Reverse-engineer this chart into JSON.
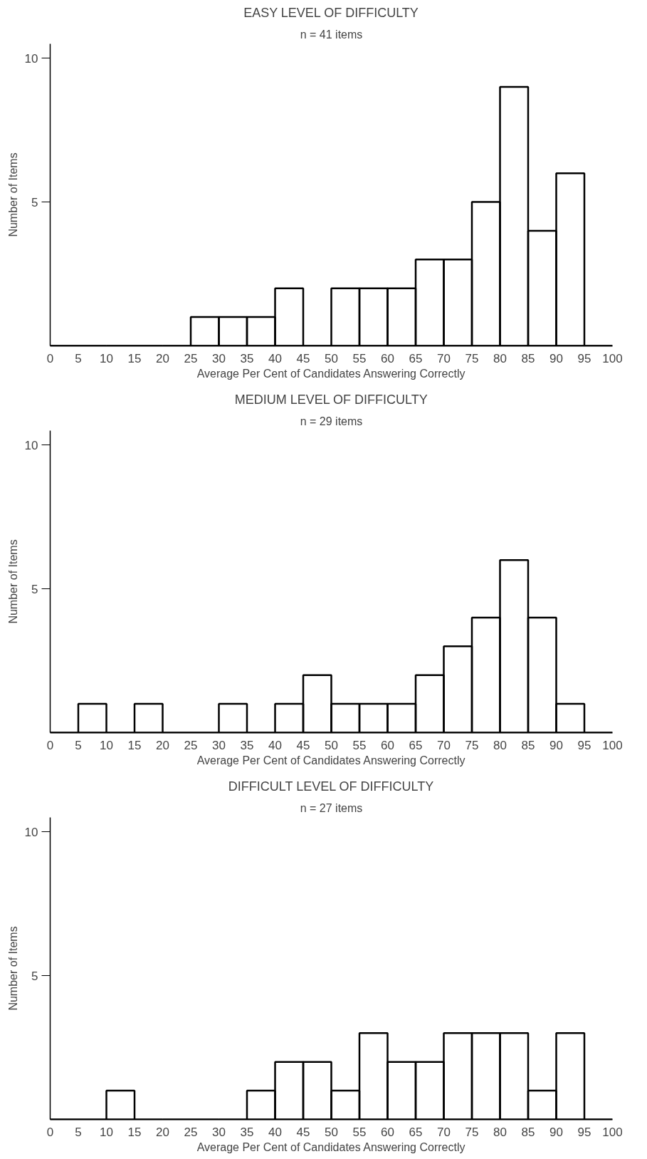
{
  "chart_data": [
    {
      "type": "histogram",
      "title": "EASY LEVEL OF DIFFICULTY",
      "subtitle": "n = 41 items",
      "xlabel": "Average Per Cent of Candidates Answering Correctly",
      "ylabel": "Number of Items",
      "bins": [
        0,
        5,
        10,
        15,
        20,
        25,
        30,
        35,
        40,
        45,
        50,
        55,
        60,
        65,
        70,
        75,
        80,
        85,
        90,
        95,
        100
      ],
      "values": [
        0,
        0,
        0,
        0,
        0,
        1,
        1,
        1,
        2,
        0,
        2,
        2,
        2,
        3,
        3,
        5,
        9,
        4,
        6,
        0
      ],
      "color": "#000000",
      "xlim": [
        0,
        100
      ],
      "ylim": [
        0,
        10.5
      ],
      "xticks": [
        0,
        5,
        10,
        15,
        20,
        25,
        30,
        35,
        40,
        45,
        50,
        55,
        60,
        65,
        70,
        75,
        80,
        85,
        90,
        95,
        100
      ],
      "yticks": [
        5,
        10
      ],
      "grid": false
    },
    {
      "type": "histogram",
      "title": "MEDIUM LEVEL OF DIFFICULTY",
      "subtitle": "n = 29 items",
      "xlabel": "Average Per Cent of Candidates Answering Correctly",
      "ylabel": "Number of Items",
      "bins": [
        0,
        5,
        10,
        15,
        20,
        25,
        30,
        35,
        40,
        45,
        50,
        55,
        60,
        65,
        70,
        75,
        80,
        85,
        90,
        95,
        100
      ],
      "values": [
        0,
        1,
        0,
        1,
        0,
        0,
        1,
        0,
        1,
        2,
        1,
        1,
        1,
        2,
        3,
        4,
        6,
        4,
        1,
        0
      ],
      "color": "#000000",
      "xlim": [
        0,
        100
      ],
      "ylim": [
        0,
        10.5
      ],
      "xticks": [
        0,
        5,
        10,
        15,
        20,
        25,
        30,
        35,
        40,
        45,
        50,
        55,
        60,
        65,
        70,
        75,
        80,
        85,
        90,
        95,
        100
      ],
      "yticks": [
        5,
        10
      ],
      "grid": false
    },
    {
      "type": "histogram",
      "title": "DIFFICULT LEVEL OF DIFFICULTY",
      "subtitle": "n = 27 items",
      "xlabel": "Average Per Cent of Candidates Answering Correctly",
      "ylabel": "Number of Items",
      "bins": [
        0,
        5,
        10,
        15,
        20,
        25,
        30,
        35,
        40,
        45,
        50,
        55,
        60,
        65,
        70,
        75,
        80,
        85,
        90,
        95,
        100
      ],
      "values": [
        0,
        0,
        1,
        0,
        0,
        0,
        0,
        1,
        2,
        2,
        1,
        3,
        2,
        2,
        3,
        3,
        3,
        1,
        3,
        0
      ],
      "color": "#000000",
      "xlim": [
        0,
        100
      ],
      "ylim": [
        0,
        10.5
      ],
      "xticks": [
        0,
        5,
        10,
        15,
        20,
        25,
        30,
        35,
        40,
        45,
        50,
        55,
        60,
        65,
        70,
        75,
        80,
        85,
        90,
        95,
        100
      ],
      "yticks": [
        5,
        10
      ],
      "grid": false
    }
  ]
}
